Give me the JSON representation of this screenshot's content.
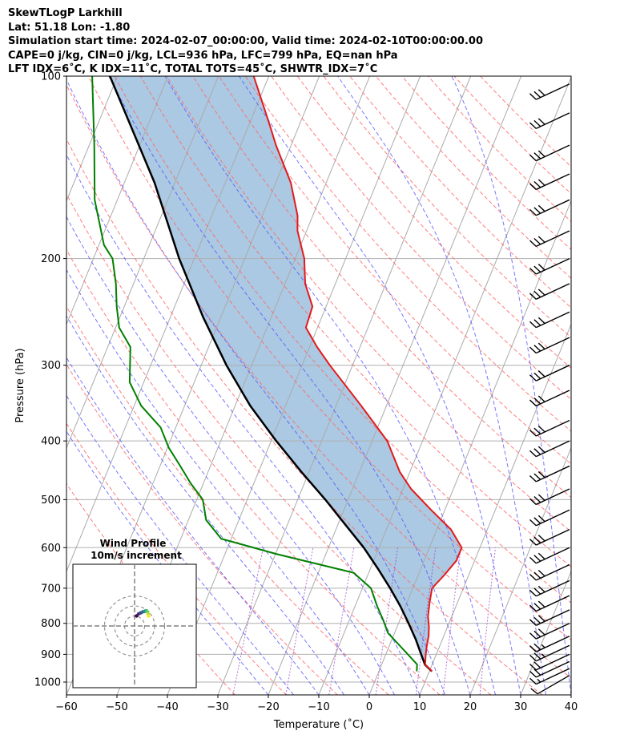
{
  "header": {
    "lines": [
      "SkewTLogP Larkhill",
      "Lat: 51.18   Lon: -1.80",
      "Simulation start time: 2024-02-07_00:00:00, Valid time: 2024-02-10T00:00:00.00",
      "CAPE=0 j/kg, CIN=0 j/kg, LCL=936 hPa, LFC=799 hPa, EQ=nan hPa",
      "LFT IDX=6˚C, K IDX=11˚C, TOTAL TOTS=45˚C, SHWTR_IDX=7˚C"
    ]
  },
  "chart_data": {
    "type": "skewt-logp",
    "xlabel": "Temperature (˚C)",
    "ylabel": "Pressure (hPa)",
    "xlim": [
      -60,
      40
    ],
    "ylim": [
      1050,
      100
    ],
    "y_scale": "log",
    "xticks": [
      -60,
      -50,
      -40,
      -30,
      -20,
      -10,
      0,
      10,
      20,
      30,
      40
    ],
    "xtick_labels": [
      "−60",
      "−50",
      "−40",
      "−30",
      "−20",
      "−10",
      "0",
      "10",
      "20",
      "30",
      "40"
    ],
    "yticks": [
      1000,
      900,
      800,
      700,
      600,
      500,
      400,
      300,
      200,
      100
    ],
    "ytick_labels": [
      "1000",
      "900",
      "800",
      "700",
      "600",
      "500",
      "400",
      "300",
      "200",
      "100"
    ],
    "grid": true,
    "temperature": {
      "color": "#e31a1c",
      "p": [
        960,
        935,
        900,
        870,
        840,
        810,
        780,
        740,
        700,
        665,
        630,
        600,
        560,
        520,
        480,
        450,
        400,
        350,
        300,
        280,
        260,
        240,
        220,
        200,
        180,
        170,
        150,
        130,
        120,
        100
      ],
      "t": [
        10.5,
        8.6,
        7.9,
        7.4,
        7.0,
        6.3,
        5.3,
        4.5,
        3.8,
        5.2,
        6.4,
        6.4,
        2.8,
        -2.7,
        -8.4,
        -12.0,
        -17.0,
        -25.0,
        -34.5,
        -38.5,
        -42.3,
        -42.7,
        -46.0,
        -48.2,
        -51.8,
        -53.0,
        -57.0,
        -63.0,
        -66.0,
        -73.0
      ]
    },
    "dewpoint": {
      "color": "#008000",
      "p": [
        960,
        935,
        880,
        830,
        790,
        750,
        700,
        660,
        615,
        580,
        540,
        500,
        470,
        440,
        410,
        380,
        350,
        320,
        280,
        260,
        240,
        220,
        200,
        190,
        160,
        130,
        100
      ],
      "t": [
        7.5,
        7.0,
        2.8,
        -1.3,
        -3.3,
        -5.6,
        -8.3,
        -13.0,
        -29.7,
        -42.0,
        -46.5,
        -48.8,
        -52.5,
        -56.0,
        -59.8,
        -63.0,
        -68.6,
        -72.8,
        -75.5,
        -79.3,
        -81.5,
        -83.5,
        -86.2,
        -89.0,
        -94.5,
        -99.0,
        -105.0
      ]
    },
    "parcel_profile": {
      "color": "#000000",
      "p": [
        960,
        936,
        900,
        850,
        800,
        750,
        700,
        650,
        600,
        550,
        500,
        450,
        400,
        350,
        300,
        250,
        200,
        150,
        100
      ],
      "t": [
        10.5,
        8.6,
        7.0,
        4.7,
        2.0,
        -1.0,
        -4.5,
        -8.5,
        -13.0,
        -18.5,
        -24.5,
        -31.5,
        -39.0,
        -47.0,
        -55.0,
        -63.5,
        -73.0,
        -84.0,
        -101.5
      ]
    },
    "shaded_region": {
      "label": "",
      "color": "#a6c6e0"
    },
    "reference_lines": {
      "isotherms": {
        "color": "#aaaaaa"
      },
      "dry_adiabats": {
        "color": "#ff6666"
      },
      "moist_adiabats": {
        "color": "#5555ff"
      },
      "mixing_ratio": {
        "color": "#9933cc"
      }
    },
    "wind_barbs": {
      "x_position": "right edge",
      "p": [
        975,
        950,
        925,
        900,
        870,
        840,
        800,
        760,
        720,
        680,
        640,
        600,
        560,
        520,
        480,
        440,
        400,
        370,
        330,
        300,
        270,
        245,
        220,
        200,
        180,
        160,
        145,
        130,
        115,
        103
      ],
      "speed_kt": [
        10,
        15,
        20,
        20,
        25,
        25,
        30,
        30,
        30,
        30,
        30,
        30,
        30,
        30,
        30,
        30,
        30,
        30,
        30,
        30,
        30,
        30,
        30,
        30,
        30,
        30,
        30,
        30,
        30,
        30
      ],
      "direction_deg": [
        240,
        245,
        245,
        245,
        245,
        245,
        245,
        245,
        245,
        245,
        245,
        245,
        245,
        245,
        245,
        245,
        245,
        245,
        245,
        245,
        245,
        245,
        245,
        245,
        245,
        245,
        245,
        245,
        245,
        245
      ]
    },
    "inset_hodograph": {
      "title": "Wind Profile",
      "subtitle": "10m/s increment",
      "ring_increment_ms": 10,
      "rings": [
        10,
        20,
        30
      ],
      "u": [
        2,
        4,
        6,
        8,
        10,
        11,
        12,
        13,
        13.5,
        14
      ],
      "v": [
        10,
        12,
        13,
        14,
        14.5,
        15,
        15,
        14,
        12,
        10
      ]
    }
  }
}
